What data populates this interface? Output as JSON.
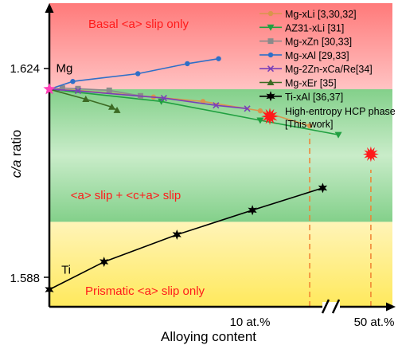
{
  "chart_data": {
    "type": "line",
    "xlabel": "Alloying content",
    "ylabel_parts": [
      "c/a",
      " ratio"
    ],
    "x_ticks": [
      "10 at.%",
      "50 at.%"
    ],
    "y_ticks": [
      "1.624",
      "1.588"
    ],
    "axis_break": "//",
    "ylim": [
      1.5848,
      1.6395
    ],
    "xlim_at_pct": [
      0,
      13.3
    ],
    "regions": [
      {
        "label": "Basal <a> slip only",
        "y_range": [
          1.624,
          1.6395
        ],
        "color": "#ff8d8d"
      },
      {
        "label": "<a> slip + <c+a> slip",
        "y_range": [
          1.6001,
          1.624
        ],
        "color": "#9bdba0"
      },
      {
        "label": "Prismatic <a> slip only",
        "y_range": [
          1.5848,
          1.6001
        ],
        "color": "#ffee88"
      }
    ],
    "annotations": [
      {
        "text": "Mg",
        "x": 0.2,
        "y": 1.6268
      },
      {
        "text": "Ti",
        "x": 0.4,
        "y": 1.5905
      }
    ],
    "vlines": [
      {
        "x": 10.0,
        "y_to": 1.616
      },
      {
        "x": 12.35,
        "y_to": 1.6095
      }
    ],
    "legend": {
      "position": "top-right"
    },
    "series": [
      {
        "name": "Mg-xLi [3,30,32]",
        "color": "#d9954c",
        "marker": "circle",
        "points": [
          [
            0,
            1.624
          ],
          [
            1.1,
            1.6238
          ],
          [
            4.0,
            1.6226
          ],
          [
            5.9,
            1.6218
          ],
          [
            8.1,
            1.6201
          ],
          [
            10.0,
            1.6174
          ]
        ]
      },
      {
        "name": "AZ31-xLi [31]",
        "color": "#20a040",
        "marker": "triangle-down",
        "points": [
          [
            0,
            1.624
          ],
          [
            4.3,
            1.6218
          ],
          [
            8.1,
            1.6184
          ],
          [
            11.1,
            1.6158
          ]
        ]
      },
      {
        "name": "Mg-xZn [30,33]",
        "color": "#8a8a8a",
        "marker": "square",
        "points": [
          [
            0,
            1.624
          ],
          [
            0.5,
            1.6242
          ],
          [
            1.1,
            1.6241
          ],
          [
            2.3,
            1.6238
          ],
          [
            3.5,
            1.6228
          ]
        ]
      },
      {
        "name": "Mg-xAl [29,33]",
        "color": "#2e6fc8",
        "marker": "circle",
        "points": [
          [
            0,
            1.624
          ],
          [
            0.9,
            1.6254
          ],
          [
            3.4,
            1.6268
          ],
          [
            5.3,
            1.6286
          ],
          [
            6.5,
            1.6295
          ]
        ]
      },
      {
        "name": "Mg-2Zn-xCa/Re[34]",
        "color": "#7a3fb8",
        "marker": "x",
        "points": [
          [
            0,
            1.624
          ],
          [
            1.1,
            1.6237
          ],
          [
            4.4,
            1.6224
          ],
          [
            6.4,
            1.6211
          ],
          [
            7.6,
            1.6205
          ]
        ]
      },
      {
        "name": "Mg-xEr [35]",
        "color": "#3d6b24",
        "marker": "triangle-up",
        "points": [
          [
            0,
            1.624
          ],
          [
            1.4,
            1.6222
          ],
          [
            2.4,
            1.6208
          ],
          [
            2.6,
            1.6202
          ]
        ]
      },
      {
        "name": "Ti-xAl [36,37]",
        "color": "#000000",
        "marker": "star",
        "points": [
          [
            0,
            1.5879
          ],
          [
            2.1,
            1.5929
          ],
          [
            4.9,
            1.5978
          ],
          [
            7.8,
            1.6022
          ],
          [
            10.5,
            1.6062
          ]
        ]
      },
      {
        "name": "High-entropy HCP phase [This work]",
        "color": "#ff1a1a",
        "marker": "burst",
        "points": [
          [
            12.35,
            1.6123
          ]
        ]
      }
    ]
  }
}
